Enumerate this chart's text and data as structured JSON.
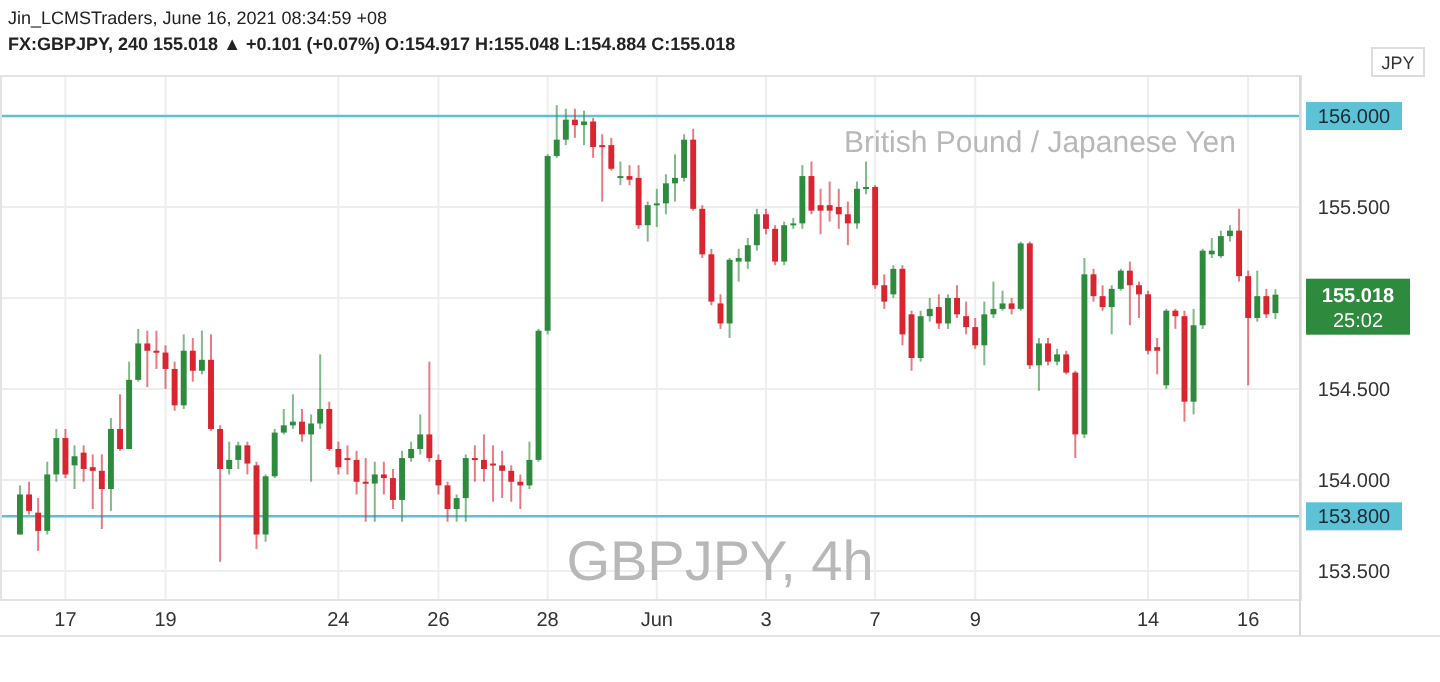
{
  "chart_data": {
    "type": "candlestick",
    "title": "FX:GBPJPY, 240 155.018 ▲ +0.101 (+0.07%) O:154.917 H:155.048 L:154.884 C:155.018",
    "subtitle": "Jin_LCMSTraders, June 16, 2021 08:34:59 +08",
    "ylabel": "JPY",
    "categories": [
      null,
      null,
      null,
      null,
      null,
      "17",
      null,
      null,
      null,
      null,
      null,
      null,
      null,
      null,
      null,
      null,
      "19",
      null,
      null,
      null,
      null,
      null,
      null,
      null,
      null,
      null,
      null,
      null,
      null,
      null,
      null,
      null,
      null,
      null,
      null,
      "24",
      null,
      null,
      null,
      null,
      null,
      null,
      null,
      null,
      null,
      null,
      "26",
      null,
      null,
      null,
      null,
      null,
      null,
      null,
      null,
      null,
      null,
      null,
      "28",
      null,
      null,
      null,
      null,
      null,
      null,
      null,
      null,
      null,
      null,
      null,
      "Jun",
      null,
      null,
      null,
      null,
      null,
      null,
      null,
      null,
      null,
      null,
      null,
      "3",
      null,
      null,
      null,
      null,
      null,
      null,
      null,
      null,
      null,
      null,
      null,
      "7",
      null,
      null,
      null,
      null,
      null,
      null,
      null,
      null,
      null,
      null,
      "9",
      null,
      null,
      null,
      null,
      null,
      null,
      null,
      null,
      null,
      null,
      null,
      null,
      null,
      null,
      null,
      null,
      null,
      null,
      "14",
      null,
      null,
      null,
      null,
      null,
      null,
      null,
      null,
      null,
      null,
      "16",
      null,
      null,
      null
    ],
    "ohlc": [
      [
        153.7,
        153.97,
        153.7,
        153.92
      ],
      [
        153.92,
        153.99,
        153.81,
        153.83
      ],
      [
        153.82,
        153.9,
        153.61,
        153.72
      ],
      [
        153.72,
        154.1,
        153.7,
        154.03
      ],
      [
        154.03,
        154.28,
        153.99,
        154.23
      ],
      [
        154.23,
        154.28,
        154.01,
        154.03
      ],
      [
        154.08,
        154.19,
        153.95,
        154.13
      ],
      [
        154.15,
        154.19,
        153.99,
        154.06
      ],
      [
        154.07,
        154.14,
        153.84,
        154.05
      ],
      [
        154.05,
        154.14,
        153.73,
        153.95
      ],
      [
        153.95,
        154.34,
        153.83,
        154.28
      ],
      [
        154.28,
        154.47,
        154.16,
        154.17
      ],
      [
        154.17,
        154.65,
        154.17,
        154.55
      ],
      [
        154.55,
        154.83,
        154.54,
        154.75
      ],
      [
        154.75,
        154.82,
        154.51,
        154.71
      ],
      [
        154.71,
        154.82,
        154.61,
        154.7
      ],
      [
        154.7,
        154.74,
        154.5,
        154.61
      ],
      [
        154.61,
        154.65,
        154.38,
        154.41
      ],
      [
        154.41,
        154.8,
        154.39,
        154.71
      ],
      [
        154.71,
        154.78,
        154.54,
        154.6
      ],
      [
        154.6,
        154.82,
        154.58,
        154.66
      ],
      [
        154.66,
        154.8,
        154.27,
        154.28
      ],
      [
        154.28,
        154.3,
        153.55,
        154.06
      ],
      [
        154.06,
        154.21,
        154.03,
        154.11
      ],
      [
        154.11,
        154.21,
        154.06,
        154.19
      ],
      [
        154.19,
        154.21,
        154.03,
        154.09
      ],
      [
        154.08,
        154.1,
        153.62,
        153.7
      ],
      [
        153.7,
        154.03,
        153.66,
        154.02
      ],
      [
        154.02,
        154.28,
        154.01,
        154.26
      ],
      [
        154.26,
        154.39,
        154.25,
        154.3
      ],
      [
        154.3,
        154.47,
        154.28,
        154.32
      ],
      [
        154.32,
        154.39,
        154.21,
        154.25
      ],
      [
        154.25,
        154.36,
        153.99,
        154.31
      ],
      [
        154.31,
        154.69,
        154.28,
        154.39
      ],
      [
        154.39,
        154.43,
        154.16,
        154.17
      ],
      [
        154.17,
        154.21,
        154.03,
        154.07
      ],
      [
        154.12,
        154.19,
        154.03,
        154.11
      ],
      [
        154.11,
        154.16,
        153.92,
        153.99
      ],
      [
        153.99,
        154.12,
        153.77,
        153.98
      ],
      [
        153.98,
        154.1,
        153.77,
        154.03
      ],
      [
        154.03,
        154.1,
        153.92,
        154.01
      ],
      [
        154.01,
        154.06,
        153.84,
        153.89
      ],
      [
        153.89,
        154.16,
        153.77,
        154.12
      ],
      [
        154.12,
        154.21,
        154.1,
        154.17
      ],
      [
        154.17,
        154.36,
        154.14,
        154.25
      ],
      [
        154.25,
        154.65,
        154.1,
        154.12
      ],
      [
        154.11,
        154.14,
        153.92,
        153.97
      ],
      [
        153.97,
        153.99,
        153.77,
        153.84
      ],
      [
        153.84,
        153.92,
        153.77,
        153.9
      ],
      [
        153.9,
        154.14,
        153.77,
        154.12
      ],
      [
        154.12,
        154.19,
        153.99,
        154.11
      ],
      [
        154.11,
        154.25,
        153.99,
        154.06
      ],
      [
        154.09,
        154.19,
        153.88,
        154.08
      ],
      [
        154.08,
        154.16,
        153.9,
        154.05
      ],
      [
        154.05,
        154.08,
        153.88,
        153.99
      ],
      [
        153.99,
        154.03,
        153.84,
        153.97
      ],
      [
        153.97,
        154.21,
        153.95,
        154.11
      ],
      [
        154.11,
        154.83,
        154.1,
        154.82
      ],
      [
        154.82,
        155.79,
        154.8,
        155.78
      ],
      [
        155.78,
        156.06,
        155.77,
        155.87
      ],
      [
        155.87,
        156.04,
        155.84,
        155.98
      ],
      [
        155.98,
        156.04,
        155.88,
        155.95
      ],
      [
        155.95,
        156.03,
        155.84,
        155.97
      ],
      [
        155.97,
        155.99,
        155.77,
        155.83
      ],
      [
        155.84,
        155.9,
        155.53,
        155.83
      ],
      [
        155.84,
        155.88,
        155.7,
        155.71
      ],
      [
        155.66,
        155.75,
        155.62,
        155.67
      ],
      [
        155.67,
        155.73,
        155.62,
        155.65
      ],
      [
        155.66,
        155.73,
        155.38,
        155.4
      ],
      [
        155.4,
        155.53,
        155.31,
        155.51
      ],
      [
        155.51,
        155.6,
        155.39,
        155.52
      ],
      [
        155.52,
        155.68,
        155.46,
        155.63
      ],
      [
        155.63,
        155.79,
        155.53,
        155.66
      ],
      [
        155.66,
        155.9,
        155.64,
        155.87
      ],
      [
        155.87,
        155.93,
        155.48,
        155.49
      ],
      [
        155.49,
        155.51,
        155.22,
        155.24
      ],
      [
        155.24,
        155.27,
        154.96,
        154.98
      ],
      [
        154.97,
        155.02,
        154.83,
        154.86
      ],
      [
        154.86,
        155.22,
        154.78,
        155.21
      ],
      [
        155.2,
        155.27,
        155.09,
        155.22
      ],
      [
        155.2,
        155.33,
        155.16,
        155.29
      ],
      [
        155.29,
        155.49,
        155.26,
        155.46
      ],
      [
        155.46,
        155.49,
        155.35,
        155.38
      ],
      [
        155.38,
        155.4,
        155.18,
        155.2
      ],
      [
        155.2,
        155.42,
        155.18,
        155.4
      ],
      [
        155.4,
        155.44,
        155.38,
        155.41
      ],
      [
        155.41,
        155.73,
        155.38,
        155.67
      ],
      [
        155.67,
        155.75,
        155.46,
        155.48
      ],
      [
        155.51,
        155.6,
        155.35,
        155.48
      ],
      [
        155.51,
        155.64,
        155.42,
        155.48
      ],
      [
        155.5,
        155.6,
        155.38,
        155.46
      ],
      [
        155.46,
        155.53,
        155.29,
        155.41
      ],
      [
        155.41,
        155.64,
        155.38,
        155.6
      ],
      [
        155.6,
        155.75,
        155.57,
        155.61
      ],
      [
        155.61,
        155.62,
        155.05,
        155.07
      ],
      [
        155.07,
        155.13,
        154.94,
        154.98
      ],
      [
        155.02,
        155.18,
        155.0,
        155.16
      ],
      [
        155.16,
        155.18,
        154.74,
        154.8
      ],
      [
        154.91,
        154.93,
        154.6,
        154.67
      ],
      [
        154.67,
        154.93,
        154.65,
        154.9
      ],
      [
        154.9,
        155.0,
        154.87,
        154.94
      ],
      [
        154.95,
        155.02,
        154.83,
        154.86
      ],
      [
        154.86,
        155.02,
        154.83,
        155.0
      ],
      [
        155.0,
        155.07,
        154.89,
        154.91
      ],
      [
        154.9,
        154.98,
        154.8,
        154.84
      ],
      [
        154.84,
        154.89,
        154.72,
        154.74
      ],
      [
        154.74,
        154.98,
        154.63,
        154.91
      ],
      [
        154.91,
        155.09,
        154.89,
        154.94
      ],
      [
        154.94,
        155.04,
        154.93,
        154.97
      ],
      [
        154.97,
        155.0,
        154.91,
        154.94
      ],
      [
        154.94,
        155.31,
        154.93,
        155.3
      ],
      [
        155.3,
        155.31,
        154.61,
        154.63
      ],
      [
        154.63,
        154.78,
        154.49,
        154.75
      ],
      [
        154.75,
        154.78,
        154.63,
        154.65
      ],
      [
        154.65,
        154.72,
        154.63,
        154.69
      ],
      [
        154.69,
        154.71,
        154.58,
        154.59
      ],
      [
        154.59,
        154.6,
        154.12,
        154.25
      ],
      [
        154.25,
        155.22,
        154.23,
        155.13
      ],
      [
        155.13,
        155.16,
        154.98,
        155.01
      ],
      [
        155.01,
        155.07,
        154.93,
        154.95
      ],
      [
        154.95,
        155.07,
        154.8,
        155.05
      ],
      [
        155.05,
        155.16,
        155.04,
        155.15
      ],
      [
        155.15,
        155.2,
        154.85,
        155.07
      ],
      [
        155.07,
        155.09,
        154.89,
        155.02
      ],
      [
        155.02,
        155.04,
        154.69,
        154.71
      ],
      [
        154.73,
        154.78,
        154.58,
        154.71
      ],
      [
        154.52,
        154.94,
        154.5,
        154.93
      ],
      [
        154.93,
        154.94,
        154.83,
        154.9
      ],
      [
        154.9,
        154.93,
        154.32,
        154.43
      ],
      [
        154.43,
        154.94,
        154.36,
        154.85
      ],
      [
        154.85,
        155.27,
        154.83,
        155.26
      ],
      [
        155.24,
        155.33,
        155.22,
        155.26
      ],
      [
        155.23,
        155.37,
        155.22,
        155.34
      ],
      [
        155.34,
        155.4,
        155.31,
        155.37
      ],
      [
        155.37,
        155.49,
        155.09,
        155.12
      ],
      [
        155.12,
        155.15,
        154.52,
        154.89
      ],
      [
        154.89,
        155.15,
        154.87,
        155.01
      ],
      [
        155.01,
        155.05,
        154.89,
        154.91
      ],
      [
        154.917,
        155.048,
        154.884,
        155.018
      ]
    ],
    "ylim": [
      153.34,
      156.22
    ],
    "yticks": [
      {
        "value": 153.5,
        "label": "153.500"
      },
      {
        "value": 154,
        "label": "154.000"
      },
      {
        "value": 154.5,
        "label": "154.500"
      },
      {
        "value": 155,
        "label": null
      },
      {
        "value": 155.5,
        "label": "155.500"
      }
    ],
    "grid": true,
    "ref_lines": [
      {
        "axis": "y",
        "value": 156,
        "label": "156.000",
        "color": "#5ec2d6"
      },
      {
        "axis": "y",
        "value": 153.8,
        "label": "153.800",
        "color": "#5ec2d6"
      }
    ],
    "annotations": [
      "GBPJPY, 4h",
      "British Pound / Japanese Yen",
      "155.018",
      "25:02"
    ]
  }
}
